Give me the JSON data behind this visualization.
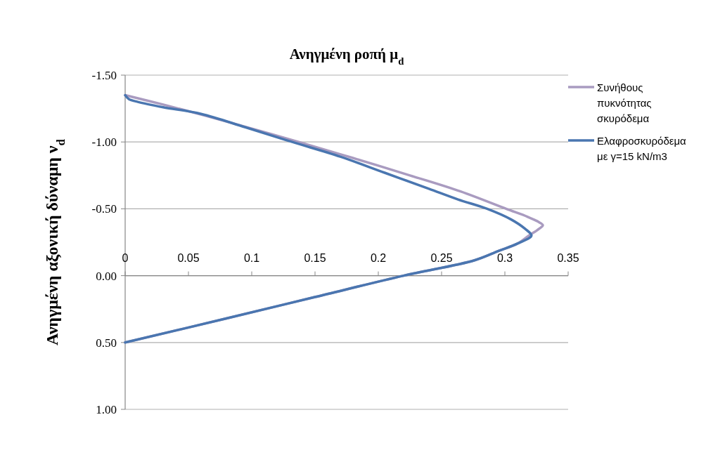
{
  "chart_data": {
    "type": "line",
    "title": "Ανηγμένη ροπή μ$_{d}$",
    "ylabel": "Ανηγμένη αξονική δύναμη ν$_{d}$",
    "xlim": [
      0,
      0.35
    ],
    "xticks": [
      0,
      0.05,
      0.1,
      0.15,
      0.2,
      0.25,
      0.3,
      0.35
    ],
    "ylim": [
      1.0,
      -1.5
    ],
    "yticks": [
      {
        "value": -1.5,
        "label": "-1.50"
      },
      {
        "value": -1.0,
        "label": "-1.00"
      },
      {
        "value": -0.5,
        "label": "-0.50"
      },
      {
        "value": 0,
        "label": "0.00"
      },
      {
        "value": 0.5,
        "label": "0.50"
      },
      {
        "value": 1.0,
        "label": "1.00"
      }
    ],
    "grid": "y",
    "legend": "right",
    "marker": "none",
    "line_style": "solid",
    "series": [
      {
        "name": "Συνήθους πυκνότητας σκυρόδεμα",
        "color": "#a99bc0",
        "x": [
          0,
          0.03,
          0.062,
          0.1,
          0.137,
          0.18,
          0.225,
          0.265,
          0.301,
          0.318,
          0.327,
          0.33,
          0.327,
          0.319,
          0.31,
          0.295,
          0.276,
          0.22,
          0.15,
          0.08,
          0
        ],
        "values": [
          -1.35,
          -1.28,
          -1.2,
          -1.1,
          -1.0,
          -0.88,
          -0.75,
          -0.63,
          -0.5,
          -0.44,
          -0.4,
          -0.378,
          -0.35,
          -0.3,
          -0.24,
          -0.185,
          -0.115,
          0,
          0.16,
          0.32,
          0.5
        ]
      },
      {
        "name": "Ελαφροσκυρόδεμα με γ=15 kN/m3",
        "color": "#4a76b0",
        "x": [
          0,
          0.003,
          0.01,
          0.03,
          0.06,
          0.095,
          0.132,
          0.17,
          0.205,
          0.24,
          0.263,
          0.286,
          0.305,
          0.316,
          0.321,
          0.31,
          0.295,
          0.276,
          0.22,
          0.15,
          0.08,
          0
        ],
        "values": [
          -1.35,
          -1.32,
          -1.3,
          -1.26,
          -1.21,
          -1.11,
          -1.0,
          -0.89,
          -0.77,
          -0.65,
          -0.57,
          -0.5,
          -0.42,
          -0.35,
          -0.3,
          -0.24,
          -0.185,
          -0.115,
          0,
          0.16,
          0.32,
          0.5
        ]
      }
    ]
  }
}
